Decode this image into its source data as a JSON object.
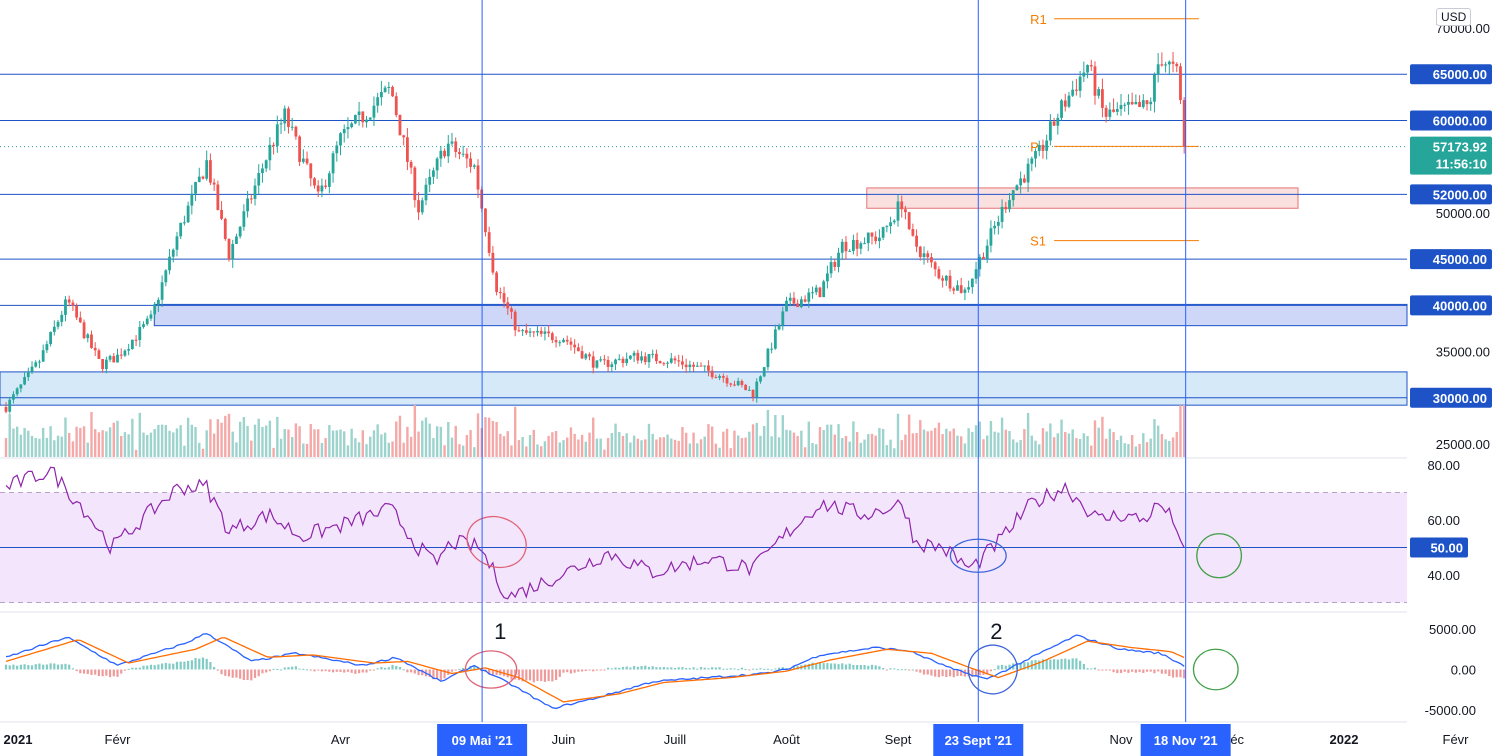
{
  "currency": "USD",
  "colors": {
    "up": "#26a69a",
    "down": "#ef5350",
    "hline": "#1e53c8",
    "vline": "#2962ff",
    "rsi": "#8e24aa",
    "macd": "#2962ff",
    "signal": "#ff6d00",
    "pivot": "#f57c00",
    "last_price": "#26a69a"
  },
  "chart_data": [
    {
      "type": "candlestick",
      "y_axis_labels": [
        "70000.00",
        "65000.00",
        "60000.00",
        "57173.92",
        "52000.00",
        "50000.00",
        "45000.00",
        "40000.00",
        "35000.00",
        "30000.00",
        "25000.00"
      ],
      "ylim": [
        25000,
        70000
      ],
      "last_price": 57173.92,
      "last_price_label": "57173.92",
      "countdown": "11:56:10",
      "horizontal_levels": [
        {
          "value": 65000,
          "label": "65000.00"
        },
        {
          "value": 60000,
          "label": "60000.00"
        },
        {
          "value": 52000,
          "label": "52000.00"
        },
        {
          "value": 45000,
          "label": "45000.00"
        },
        {
          "value": 40000,
          "label": "40000.00"
        },
        {
          "value": 30000,
          "label": "30000.00"
        }
      ],
      "plain_ticks": [
        {
          "value": 70000,
          "label": "70000.00"
        },
        {
          "value": 50000,
          "label": "50000.00"
        },
        {
          "value": 35000,
          "label": "35000.00"
        },
        {
          "value": 25000,
          "label": "25000.00"
        }
      ],
      "zones": [
        {
          "from": 37800,
          "to": 40100,
          "color": "#c6d0f7"
        },
        {
          "from": 29200,
          "to": 32800,
          "color": "#cfe5f7"
        },
        {
          "from": 50500,
          "to": 52700,
          "color": "#fadadb"
        }
      ],
      "pivots": [
        {
          "label": "R1",
          "value": 71000
        },
        {
          "label": "P",
          "value": 57200
        },
        {
          "label": "S1",
          "value": 47000
        }
      ],
      "monthly_anchors": [
        {
          "month": 0,
          "value": 29000
        },
        {
          "month": 0.3,
          "value": 34000
        },
        {
          "month": 0.55,
          "value": 40500
        },
        {
          "month": 0.85,
          "value": 33500
        },
        {
          "month": 1.0,
          "value": 34500
        },
        {
          "month": 1.3,
          "value": 38500
        },
        {
          "month": 1.55,
          "value": 48000
        },
        {
          "month": 1.8,
          "value": 55500
        },
        {
          "month": 2.0,
          "value": 45500
        },
        {
          "month": 2.35,
          "value": 56500
        },
        {
          "month": 2.5,
          "value": 60500
        },
        {
          "month": 2.8,
          "value": 51500
        },
        {
          "month": 3.0,
          "value": 58000
        },
        {
          "month": 3.45,
          "value": 63500
        },
        {
          "month": 3.7,
          "value": 50500
        },
        {
          "month": 3.95,
          "value": 57500
        },
        {
          "month": 4.2,
          "value": 55000
        },
        {
          "month": 4.4,
          "value": 42000
        },
        {
          "month": 4.6,
          "value": 37000
        },
        {
          "month": 5.0,
          "value": 36500
        },
        {
          "month": 5.3,
          "value": 33500
        },
        {
          "month": 5.65,
          "value": 34500
        },
        {
          "month": 6.0,
          "value": 34000
        },
        {
          "month": 6.4,
          "value": 32500
        },
        {
          "month": 6.7,
          "value": 30500
        },
        {
          "month": 7.0,
          "value": 40000
        },
        {
          "month": 7.3,
          "value": 41500
        },
        {
          "month": 7.5,
          "value": 46500
        },
        {
          "month": 7.85,
          "value": 47500
        },
        {
          "month": 8.05,
          "value": 51500
        },
        {
          "month": 8.1,
          "value": 47500
        },
        {
          "month": 8.35,
          "value": 43500
        },
        {
          "month": 8.6,
          "value": 41500
        },
        {
          "month": 8.85,
          "value": 48000
        },
        {
          "month": 9.0,
          "value": 52000
        },
        {
          "month": 9.25,
          "value": 56000
        },
        {
          "month": 9.45,
          "value": 61000
        },
        {
          "month": 9.7,
          "value": 66000
        },
        {
          "month": 9.85,
          "value": 60500
        },
        {
          "month": 10.0,
          "value": 61000
        },
        {
          "month": 10.25,
          "value": 61500
        },
        {
          "month": 10.35,
          "value": 67000
        },
        {
          "month": 10.5,
          "value": 65000
        },
        {
          "month": 10.58,
          "value": 57200
        }
      ]
    },
    {
      "type": "line",
      "name": "RSI",
      "y_axis_labels": [
        "80.00",
        "60.00",
        "40.00"
      ],
      "ylim": [
        30,
        80
      ],
      "band": [
        30,
        70
      ],
      "level": {
        "value": 50,
        "label": "50.00"
      },
      "anchors": [
        {
          "month": 0,
          "value": 72
        },
        {
          "month": 0.4,
          "value": 78
        },
        {
          "month": 0.7,
          "value": 64
        },
        {
          "month": 0.95,
          "value": 50
        },
        {
          "month": 1.3,
          "value": 63
        },
        {
          "month": 1.55,
          "value": 72
        },
        {
          "month": 1.8,
          "value": 72
        },
        {
          "month": 2.0,
          "value": 56
        },
        {
          "month": 2.35,
          "value": 62
        },
        {
          "month": 2.65,
          "value": 54
        },
        {
          "month": 3.0,
          "value": 58
        },
        {
          "month": 3.45,
          "value": 64
        },
        {
          "month": 3.7,
          "value": 50
        },
        {
          "month": 3.85,
          "value": 44
        },
        {
          "month": 4.0,
          "value": 52
        },
        {
          "month": 4.25,
          "value": 50
        },
        {
          "month": 4.5,
          "value": 32
        },
        {
          "month": 4.8,
          "value": 37
        },
        {
          "month": 5.4,
          "value": 48
        },
        {
          "month": 5.8,
          "value": 41
        },
        {
          "month": 6.3,
          "value": 46
        },
        {
          "month": 6.7,
          "value": 42
        },
        {
          "month": 7.0,
          "value": 55
        },
        {
          "month": 7.3,
          "value": 66
        },
        {
          "month": 7.7,
          "value": 62
        },
        {
          "month": 8.05,
          "value": 66
        },
        {
          "month": 8.15,
          "value": 52
        },
        {
          "month": 8.4,
          "value": 50
        },
        {
          "month": 8.65,
          "value": 42
        },
        {
          "month": 8.9,
          "value": 52
        },
        {
          "month": 9.2,
          "value": 66
        },
        {
          "month": 9.5,
          "value": 72
        },
        {
          "month": 9.8,
          "value": 60
        },
        {
          "month": 10.0,
          "value": 62
        },
        {
          "month": 10.2,
          "value": 60
        },
        {
          "month": 10.35,
          "value": 66
        },
        {
          "month": 10.5,
          "value": 58
        },
        {
          "month": 10.58,
          "value": 45
        }
      ]
    },
    {
      "type": "line",
      "name": "MACD",
      "y_axis_labels": [
        "5000.00",
        "0.00",
        "-5000.00"
      ],
      "ylim": [
        -5000,
        5000
      ],
      "macd_anchors": [
        {
          "month": 0,
          "value": 1500
        },
        {
          "month": 0.55,
          "value": 4000
        },
        {
          "month": 1.0,
          "value": 500
        },
        {
          "month": 1.6,
          "value": 3200
        },
        {
          "month": 1.8,
          "value": 4500
        },
        {
          "month": 2.2,
          "value": 1000
        },
        {
          "month": 2.6,
          "value": 2000
        },
        {
          "month": 3.2,
          "value": 500
        },
        {
          "month": 3.5,
          "value": 1500
        },
        {
          "month": 3.9,
          "value": -1500
        },
        {
          "month": 4.2,
          "value": 500
        },
        {
          "month": 4.55,
          "value": -2000
        },
        {
          "month": 4.9,
          "value": -4800
        },
        {
          "month": 5.3,
          "value": -3500
        },
        {
          "month": 5.8,
          "value": -1500
        },
        {
          "month": 6.3,
          "value": -1000
        },
        {
          "month": 6.8,
          "value": -500
        },
        {
          "month": 7.0,
          "value": 0
        },
        {
          "month": 7.3,
          "value": 1800
        },
        {
          "month": 7.8,
          "value": 2700
        },
        {
          "month": 8.1,
          "value": 2300
        },
        {
          "month": 8.5,
          "value": 0
        },
        {
          "month": 8.8,
          "value": -1200
        },
        {
          "month": 9.2,
          "value": 1500
        },
        {
          "month": 9.6,
          "value": 4200
        },
        {
          "month": 10.0,
          "value": 2500
        },
        {
          "month": 10.35,
          "value": 2000
        },
        {
          "month": 10.58,
          "value": 400
        }
      ],
      "signal_anchors": [
        {
          "month": 0,
          "value": 1000
        },
        {
          "month": 0.65,
          "value": 3700
        },
        {
          "month": 1.1,
          "value": 800
        },
        {
          "month": 1.7,
          "value": 2500
        },
        {
          "month": 1.95,
          "value": 4000
        },
        {
          "month": 2.35,
          "value": 1500
        },
        {
          "month": 2.75,
          "value": 1800
        },
        {
          "month": 3.3,
          "value": 800
        },
        {
          "month": 3.6,
          "value": 1000
        },
        {
          "month": 4.0,
          "value": -500
        },
        {
          "month": 4.3,
          "value": 200
        },
        {
          "month": 4.6,
          "value": -1000
        },
        {
          "month": 5.0,
          "value": -4000
        },
        {
          "month": 5.5,
          "value": -3000
        },
        {
          "month": 5.9,
          "value": -1600
        },
        {
          "month": 6.5,
          "value": -1000
        },
        {
          "month": 7.0,
          "value": -200
        },
        {
          "month": 7.4,
          "value": 1200
        },
        {
          "month": 7.9,
          "value": 2500
        },
        {
          "month": 8.3,
          "value": 2000
        },
        {
          "month": 8.65,
          "value": 200
        },
        {
          "month": 8.9,
          "value": -1000
        },
        {
          "month": 9.3,
          "value": 1000
        },
        {
          "month": 9.7,
          "value": 3500
        },
        {
          "month": 10.1,
          "value": 2700
        },
        {
          "month": 10.45,
          "value": 2200
        },
        {
          "month": 10.58,
          "value": 1400
        }
      ]
    }
  ],
  "x_axis": {
    "ticks": [
      {
        "label": "2021",
        "month": 0,
        "bold": true
      },
      {
        "label": "Févr",
        "month": 1,
        "bold": false
      },
      {
        "label": "Avr",
        "month": 3,
        "bold": false
      },
      {
        "label": "Juin",
        "month": 5,
        "bold": false
      },
      {
        "label": "Juill",
        "month": 6,
        "bold": false
      },
      {
        "label": "Août",
        "month": 7,
        "bold": false
      },
      {
        "label": "Sept",
        "month": 8,
        "bold": false
      },
      {
        "label": "Nov",
        "month": 10,
        "bold": false
      },
      {
        "label": "Déc",
        "month": 11,
        "bold": false
      },
      {
        "label": "2022",
        "month": 12,
        "bold": true
      },
      {
        "label": "Févr",
        "month": 13,
        "bold": false
      }
    ],
    "markers": [
      {
        "label": "09 Mai '21",
        "month": 4.27,
        "number": "1"
      },
      {
        "label": "23 Sept '21",
        "month": 8.72,
        "number": "2"
      },
      {
        "label": "18 Nov '21",
        "month": 10.58,
        "number": ""
      }
    ]
  },
  "annotations": {
    "ellipses": [
      {
        "pane": "rsi",
        "month": 4.4,
        "value": 52,
        "rx_months": 0.27,
        "ry_value": 9,
        "color": "#e06377",
        "rotate": 20
      },
      {
        "pane": "rsi",
        "month": 8.72,
        "value": 47,
        "rx_months": 0.25,
        "ry_value": 6,
        "color": "#3f66d9",
        "rotate": 0
      },
      {
        "pane": "rsi",
        "month": 10.88,
        "value": 47,
        "rx_months": 0.2,
        "ry_value": 8,
        "color": "#43a047",
        "rotate": 0
      },
      {
        "pane": "macd",
        "month": 4.35,
        "value": 0,
        "rx_months": 0.23,
        "ry_value": 2300,
        "color": "#e06377",
        "rotate": 0
      },
      {
        "pane": "macd",
        "month": 8.85,
        "value": 0,
        "rx_months": 0.22,
        "ry_value": 3000,
        "color": "#3f66d9",
        "rotate": -30
      },
      {
        "pane": "macd",
        "month": 10.85,
        "value": 0,
        "rx_months": 0.2,
        "ry_value": 2500,
        "color": "#43a047",
        "rotate": 0
      }
    ]
  }
}
